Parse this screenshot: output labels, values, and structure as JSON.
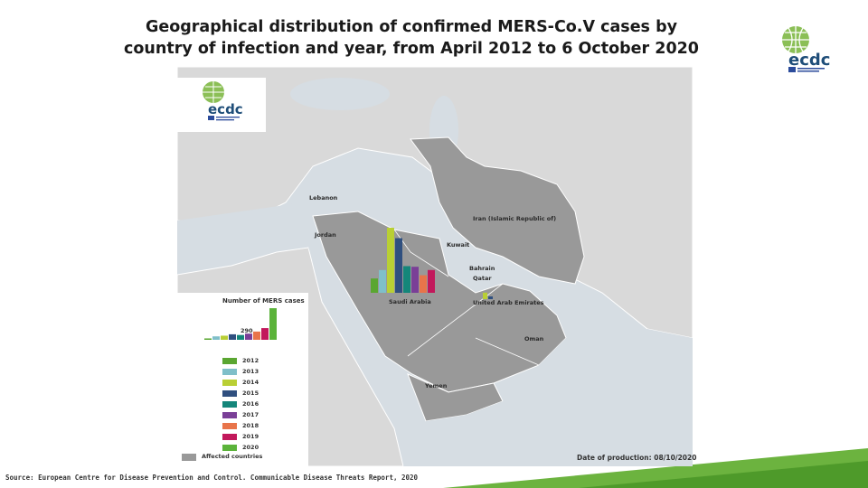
{
  "title": {
    "line1": "Geographical distribution of confirmed MERS-Co.V cases by",
    "line2": "country of infection and year, from April 2012 to 6 October 2020"
  },
  "logo": {
    "icon": "ecdc-logo",
    "text": "ecdc"
  },
  "map": {
    "country_labels": {
      "lebanon": "Lebanon",
      "jordan": "Jordan",
      "iran": "Iran (Islamic Republic of)",
      "kuwait": "Kuwait",
      "bahrain": "Bahrain",
      "qatar": "Qatar",
      "saudi": "Saudi Arabia",
      "uae": "United Arab Emirates",
      "oman": "Oman",
      "yemen": "Yemen"
    },
    "colors": {
      "affected": "#999999",
      "land": "#d9d9d9",
      "sea": "#d6dde3"
    },
    "saudi_arabia_cases": [
      {
        "year": "2012",
        "fraction": 0.22
      },
      {
        "year": "2013",
        "fraction": 0.35
      },
      {
        "year": "2014",
        "fraction": 1.0
      },
      {
        "year": "2015",
        "fraction": 0.84
      },
      {
        "year": "2016",
        "fraction": 0.41
      },
      {
        "year": "2017",
        "fraction": 0.4
      },
      {
        "year": "2018",
        "fraction": 0.27
      },
      {
        "year": "2019",
        "fraction": 0.35
      }
    ],
    "uae_cases": [
      {
        "year": "2014",
        "fraction": 0.12
      },
      {
        "year": "2015",
        "fraction": 0.05
      }
    ]
  },
  "legend": {
    "title": "Number of MERS cases",
    "reference": "290",
    "years": [
      {
        "label": "2012",
        "color": "#5aa631"
      },
      {
        "label": "2013",
        "color": "#7fbfc9"
      },
      {
        "label": "2014",
        "color": "#b9cf34"
      },
      {
        "label": "2015",
        "color": "#2f4f7f"
      },
      {
        "label": "2016",
        "color": "#14867a"
      },
      {
        "label": "2017",
        "color": "#7a3f97"
      },
      {
        "label": "2018",
        "color": "#e8744a"
      },
      {
        "label": "2019",
        "color": "#c2185b"
      },
      {
        "label": "2020",
        "color": "#5bb33a"
      }
    ],
    "affected_label": "Affected countries"
  },
  "date_of_production": "Date of production: 08/10/2020",
  "source": "Source: European Centre for Disease Prevention and Control. Communicable Disease Threats Report, 2020"
}
